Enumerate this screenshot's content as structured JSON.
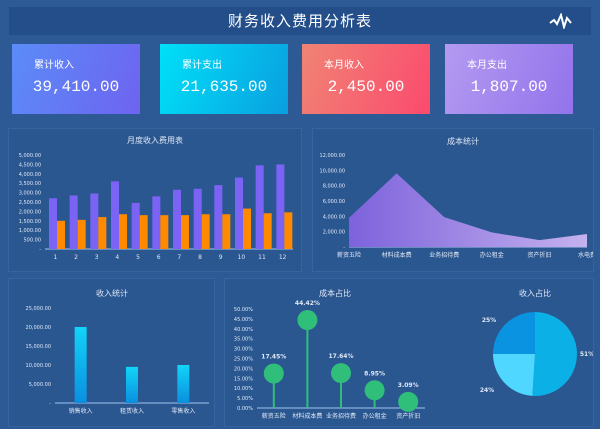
{
  "header": {
    "title": "财务收入费用分析表",
    "icon": "pulse-icon"
  },
  "cards": [
    {
      "label": "累计收入",
      "value": "39,410.00",
      "from": "#5b8cf8",
      "to": "#6e63f0"
    },
    {
      "label": "累计支出",
      "value": "21,635.00",
      "from": "#00e0f8",
      "to": "#0a9fe0"
    },
    {
      "label": "本月收入",
      "value": "2,450.00",
      "from": "#f08474",
      "to": "#fb4a6e"
    },
    {
      "label": "本月支出",
      "value": "1,807.00",
      "from": "#b49af0",
      "to": "#9373ec"
    }
  ],
  "chart_data": [
    {
      "type": "bar",
      "title": "月度收入费用表",
      "categories": [
        "1",
        "2",
        "3",
        "4",
        "5",
        "6",
        "7",
        "8",
        "9",
        "10",
        "11",
        "12"
      ],
      "series": [
        {
          "values": [
            2700,
            2850,
            2950,
            3600,
            2450,
            2800,
            3150,
            3200,
            3400,
            3800,
            4450,
            4500
          ],
          "color": "#7b63f5"
        },
        {
          "values": [
            1500,
            1550,
            1700,
            1850,
            1800,
            1800,
            1800,
            1850,
            1850,
            2150,
            1900,
            1950
          ],
          "color": "#ff8a00"
        }
      ],
      "yticks": [
        "-",
        "500.00",
        "1,000.00",
        "1,500.00",
        "2,000.00",
        "2,500.00",
        "3,000.00",
        "3,500.00",
        "4,000.00",
        "4,500.00",
        "5,000.00"
      ],
      "ylim": [
        0,
        5000
      ]
    },
    {
      "type": "area",
      "title": "成本统计",
      "categories": [
        "薪资五险",
        "材料成本费",
        "业务招待费",
        "办公租金",
        "资产折旧",
        "水电费"
      ],
      "values": [
        3800,
        9600,
        3900,
        1900,
        900,
        1700
      ],
      "yticks": [
        "-",
        "2,000.00",
        "4,000.00",
        "6,000.00",
        "8,000.00",
        "10,000.00",
        "12,000.00"
      ],
      "ylim": [
        0,
        12000
      ]
    },
    {
      "type": "bar",
      "title": "收入统计",
      "categories": [
        "销售收入",
        "租赁收入",
        "零售收入"
      ],
      "values": [
        20000,
        9500,
        10000
      ],
      "yticks": [
        "-",
        "5,000.00",
        "10,000.00",
        "15,000.00",
        "20,000.00",
        "25,000.00"
      ],
      "ylim": [
        0,
        25000
      ]
    },
    {
      "type": "scatter",
      "title": "成本占比",
      "categories": [
        "薪资五险",
        "材料成本费",
        "业务招待费",
        "办公租金",
        "资产折旧"
      ],
      "values": [
        17.45,
        44.42,
        17.64,
        8.95,
        3.09
      ],
      "labels": [
        "17.45%",
        "44.42%",
        "17.64%",
        "8.95%",
        "3.09%"
      ],
      "yticks": [
        "0.00%",
        "5.00%",
        "10.00%",
        "15.00%",
        "20.00%",
        "25.00%",
        "30.00%",
        "35.00%",
        "40.00%",
        "45.00%",
        "50.00%"
      ],
      "ylim": [
        0,
        50
      ]
    },
    {
      "type": "pie",
      "title": "收入占比",
      "values": [
        51,
        24,
        25
      ],
      "labels": [
        "51%",
        "24%",
        "25%"
      ],
      "colors": [
        "#0bb0e6",
        "#4fd7ff",
        "#0993e0"
      ]
    }
  ]
}
